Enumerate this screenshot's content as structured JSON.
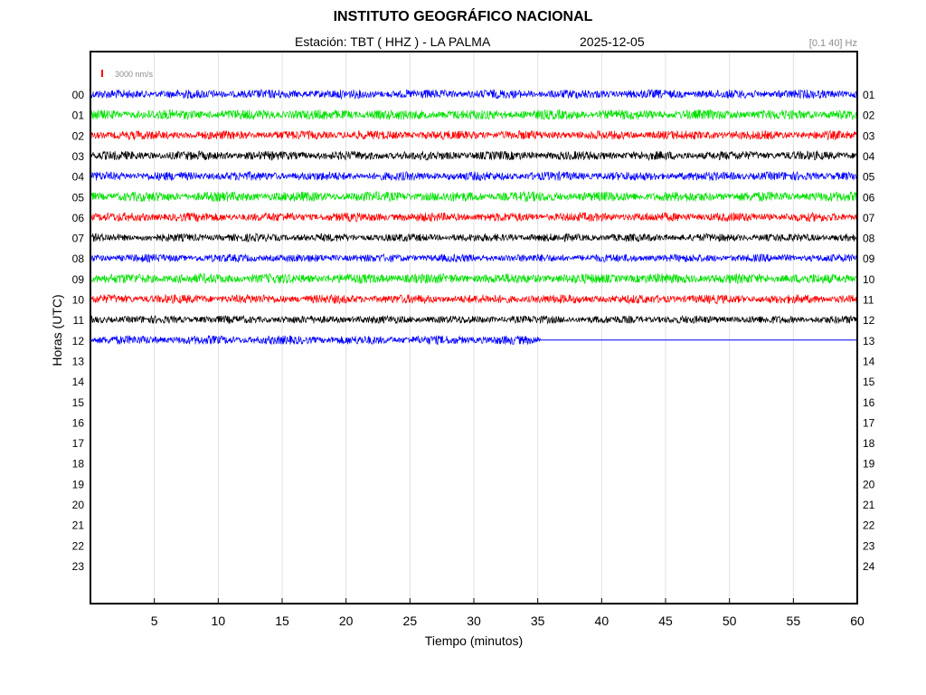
{
  "header": {
    "title": "INSTITUTO GEOGRÁFICO NACIONAL",
    "station": "Estación:  TBT ( HHZ ) - LA PALMA",
    "date": "2025-12-05",
    "band": "[0.1 40] Hz"
  },
  "scale": {
    "label": "3000 nm/s",
    "color": "#ff0000"
  },
  "chart_data": {
    "type": "line",
    "title": "INSTITUTO GEOGRÁFICO NACIONAL",
    "subtitle": "Estación:  TBT ( HHZ ) - LA PALMA   2025-12-05",
    "xlabel": "Tiempo (minutos)",
    "ylabel": "Horas (UTC)",
    "xlim": [
      0,
      60
    ],
    "x_ticks": [
      5,
      10,
      15,
      20,
      25,
      30,
      35,
      40,
      45,
      50,
      55,
      60
    ],
    "y_left_ticks": [
      "00",
      "01",
      "02",
      "03",
      "04",
      "05",
      "06",
      "07",
      "08",
      "09",
      "10",
      "11",
      "12",
      "13",
      "14",
      "15",
      "16",
      "17",
      "18",
      "19",
      "20",
      "21",
      "22",
      "23"
    ],
    "y_right_ticks": [
      "01",
      "02",
      "03",
      "04",
      "05",
      "06",
      "07",
      "08",
      "09",
      "10",
      "11",
      "12",
      "13",
      "14",
      "15",
      "16",
      "17",
      "18",
      "19",
      "20",
      "21",
      "22",
      "23",
      "24"
    ],
    "grid": "vertical",
    "trace_colors": [
      "#0000ff",
      "#00e000",
      "#ff0000",
      "#000000"
    ],
    "traces": [
      {
        "hour": "00",
        "color": "#0000ff",
        "amplitude": 0.45,
        "data_end_min": 60
      },
      {
        "hour": "01",
        "color": "#00e000",
        "amplitude": 0.5,
        "data_end_min": 60
      },
      {
        "hour": "02",
        "color": "#ff0000",
        "amplitude": 0.45,
        "data_end_min": 60
      },
      {
        "hour": "03",
        "color": "#000000",
        "amplitude": 0.45,
        "data_end_min": 60
      },
      {
        "hour": "04",
        "color": "#0000ff",
        "amplitude": 0.45,
        "data_end_min": 60
      },
      {
        "hour": "05",
        "color": "#00e000",
        "amplitude": 0.5,
        "data_end_min": 60
      },
      {
        "hour": "06",
        "color": "#ff0000",
        "amplitude": 0.45,
        "data_end_min": 60
      },
      {
        "hour": "07",
        "color": "#000000",
        "amplitude": 0.4,
        "data_end_min": 60
      },
      {
        "hour": "08",
        "color": "#0000ff",
        "amplitude": 0.4,
        "data_end_min": 60
      },
      {
        "hour": "09",
        "color": "#00e000",
        "amplitude": 0.5,
        "data_end_min": 60
      },
      {
        "hour": "10",
        "color": "#ff0000",
        "amplitude": 0.45,
        "data_end_min": 60
      },
      {
        "hour": "11",
        "color": "#000000",
        "amplitude": 0.4,
        "data_end_min": 60
      },
      {
        "hour": "12",
        "color": "#0000ff",
        "amplitude": 0.45,
        "data_end_min": 35.2
      }
    ]
  }
}
